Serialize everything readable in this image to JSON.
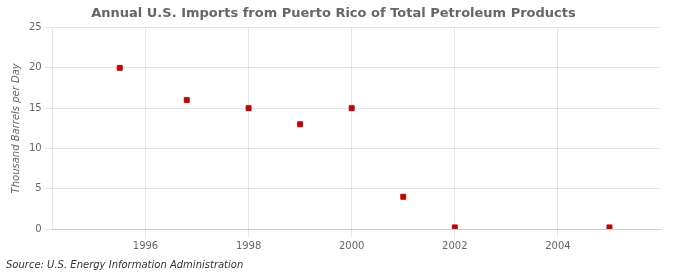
{
  "chart_data": {
    "type": "scatter",
    "title": "Annual U.S. Imports from Puerto Rico of Total Petroleum Products",
    "ylabel": "Thousand Barrels per Day",
    "annotations": [
      "Source: U.S. Energy Information Administration"
    ],
    "x": [
      1995.5,
      1996.8,
      1998,
      1999,
      2000,
      2001,
      2002,
      2005
    ],
    "values": [
      20,
      16,
      15,
      13,
      15,
      4,
      0.2,
      0.2
    ],
    "color": "#cc0000",
    "marker": "square",
    "xlim": [
      1994.2,
      2006
    ],
    "ylim": [
      0,
      25
    ],
    "xticks": [
      1996,
      1998,
      2000,
      2002,
      2004
    ],
    "yticks": [
      0,
      5,
      10,
      15,
      20,
      25
    ],
    "grid": true
  }
}
